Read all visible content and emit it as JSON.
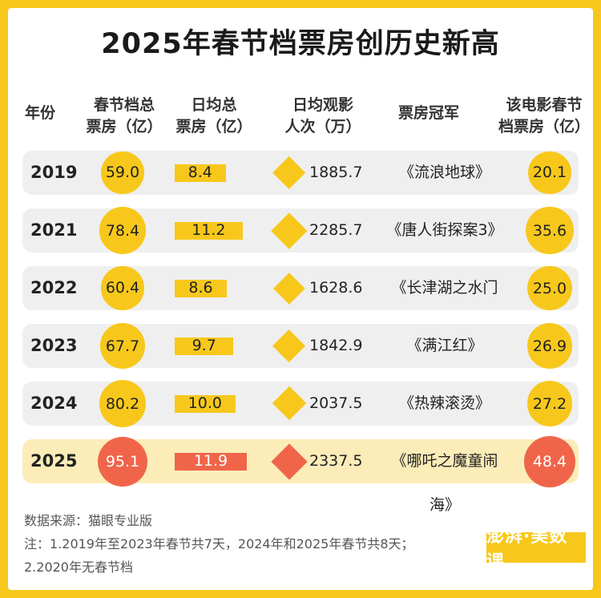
{
  "title": "2025年春节档票房创历史新高",
  "headers": [
    "年份",
    "春节档总\n票房（亿）",
    "日均总\n票房（亿）",
    "日均观影\n人次（万）",
    "票房冠军",
    "该电影春节\n档票房（亿）"
  ],
  "chart_data": {
    "type": "table",
    "rows": [
      {
        "year": "2019",
        "total": 59.0,
        "daily": 8.4,
        "viewers": 1885.7,
        "champion": "《流浪地球》",
        "champion_box": 20.1
      },
      {
        "year": "2021",
        "total": 78.4,
        "daily": 11.2,
        "viewers": 2285.7,
        "champion": "《唐人街探案3》",
        "champion_box": 35.6
      },
      {
        "year": "2022",
        "total": 60.4,
        "daily": 8.6,
        "viewers": 1628.6,
        "champion": "《长津湖之水门桥》",
        "champion_box": 25.0
      },
      {
        "year": "2023",
        "total": 67.7,
        "daily": 9.7,
        "viewers": 1842.9,
        "champion": "《满江红》",
        "champion_box": 26.9
      },
      {
        "year": "2024",
        "total": 80.2,
        "daily": 10.0,
        "viewers": 2037.5,
        "champion": "《热辣滚烫》",
        "champion_box": 27.2
      },
      {
        "year": "2025",
        "total": 95.1,
        "daily": 11.9,
        "viewers": 2337.5,
        "champion": "《哪吒之魔童闹海》",
        "champion_box": 48.4
      }
    ],
    "highlight_year": "2025"
  },
  "colors": {
    "accent": "#F7C81B",
    "highlight": "#F0654A"
  },
  "footer": {
    "source": "数据来源：猫眼专业版",
    "note1": "注：1.2019年至2023年春节共7天，2024年和2025年春节共8天；",
    "note2": "2.2020年无春节档"
  },
  "logo": "澎湃·美数课"
}
